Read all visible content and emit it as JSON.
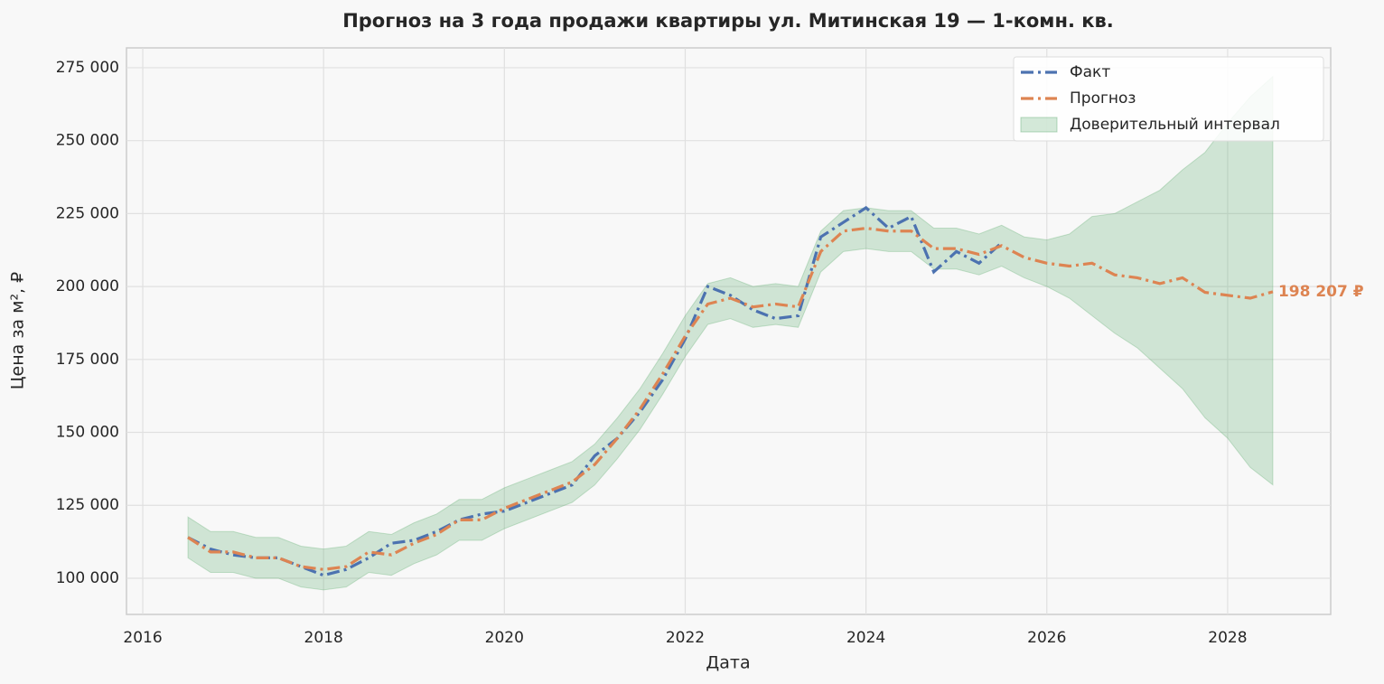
{
  "chart_data": {
    "type": "line",
    "title": "Прогноз на 3 года продажи квартиры  ул. Митинская 19 — 1-комн. кв.",
    "xlabel": "Дата",
    "ylabel": "Цена за м², ₽",
    "x": [
      2016.5,
      2016.75,
      2017,
      2017.25,
      2017.5,
      2017.75,
      2018,
      2018.25,
      2018.5,
      2018.75,
      2019,
      2019.25,
      2019.5,
      2019.75,
      2020,
      2020.25,
      2020.5,
      2020.75,
      2021,
      2021.25,
      2021.5,
      2021.75,
      2022,
      2022.25,
      2022.5,
      2022.75,
      2023,
      2023.25,
      2023.5,
      2023.75,
      2024,
      2024.25,
      2024.5,
      2024.75,
      2025,
      2025.25,
      2025.5,
      2025.75,
      2026,
      2026.25,
      2026.5,
      2026.75,
      2027,
      2027.25,
      2027.5,
      2027.75,
      2028,
      2028.25,
      2028.5
    ],
    "series": [
      {
        "name": "Факт",
        "color": "#4c72b0",
        "values": [
          114000,
          110000,
          108000,
          107000,
          107000,
          104000,
          101000,
          103000,
          107000,
          112000,
          113000,
          116000,
          120000,
          122000,
          123000,
          126000,
          129000,
          132000,
          142000,
          148000,
          157000,
          168000,
          182000,
          200000,
          197000,
          192000,
          189000,
          190000,
          217000,
          222000,
          227000,
          220000,
          224000,
          205000,
          212000,
          208000,
          215000,
          null,
          null,
          null,
          null,
          null,
          null,
          null,
          null,
          null,
          null,
          null,
          null
        ]
      },
      {
        "name": "Прогноз",
        "color": "#dd8452",
        "values": [
          114000,
          109000,
          109000,
          107000,
          107000,
          104000,
          103000,
          104000,
          109000,
          108000,
          112000,
          115000,
          120000,
          120000,
          124000,
          127000,
          130000,
          133000,
          139000,
          148000,
          158000,
          170000,
          183000,
          194000,
          196000,
          193000,
          194000,
          193000,
          212000,
          219000,
          220000,
          219000,
          219000,
          213000,
          213000,
          211000,
          214000,
          210000,
          208000,
          207000,
          208000,
          204000,
          203000,
          201000,
          203000,
          198000,
          197000,
          196000,
          198207
        ]
      }
    ],
    "band": {
      "name": "Доверительный интервал",
      "color": "#55a868",
      "lower": [
        107000,
        102000,
        102000,
        100000,
        100000,
        97000,
        96000,
        97000,
        102000,
        101000,
        105000,
        108000,
        113000,
        113000,
        117000,
        120000,
        123000,
        126000,
        132000,
        141000,
        151000,
        163000,
        176000,
        187000,
        189000,
        186000,
        187000,
        186000,
        205000,
        212000,
        213000,
        212000,
        212000,
        206000,
        206000,
        204000,
        207000,
        203000,
        200000,
        196000,
        190000,
        184000,
        179000,
        172000,
        165000,
        155000,
        148000,
        138000,
        132000
      ],
      "upper": [
        121000,
        116000,
        116000,
        114000,
        114000,
        111000,
        110000,
        111000,
        116000,
        115000,
        119000,
        122000,
        127000,
        127000,
        131000,
        134000,
        137000,
        140000,
        146000,
        155000,
        165000,
        177000,
        190000,
        201000,
        203000,
        200000,
        201000,
        200000,
        219000,
        226000,
        227000,
        226000,
        226000,
        220000,
        220000,
        218000,
        221000,
        217000,
        216000,
        218000,
        224000,
        225000,
        229000,
        233000,
        240000,
        246000,
        256000,
        265000,
        272000
      ]
    },
    "end_label": "198 207 ₽",
    "xlim": [
      2015.82,
      2029.14
    ],
    "xticks": [
      2016,
      2018,
      2020,
      2022,
      2024,
      2026,
      2028
    ],
    "ylim": [
      87600,
      281800
    ],
    "yticks": [
      {
        "value": 100000,
        "label": "100 000"
      },
      {
        "value": 125000,
        "label": "125 000"
      },
      {
        "value": 150000,
        "label": "150 000"
      },
      {
        "value": 175000,
        "label": "175 000"
      },
      {
        "value": 200000,
        "label": "200 000"
      },
      {
        "value": 225000,
        "label": "225 000"
      },
      {
        "value": 250000,
        "label": "250 000"
      },
      {
        "value": 275000,
        "label": "275 000"
      }
    ],
    "grid": true,
    "legend": "upper right"
  }
}
